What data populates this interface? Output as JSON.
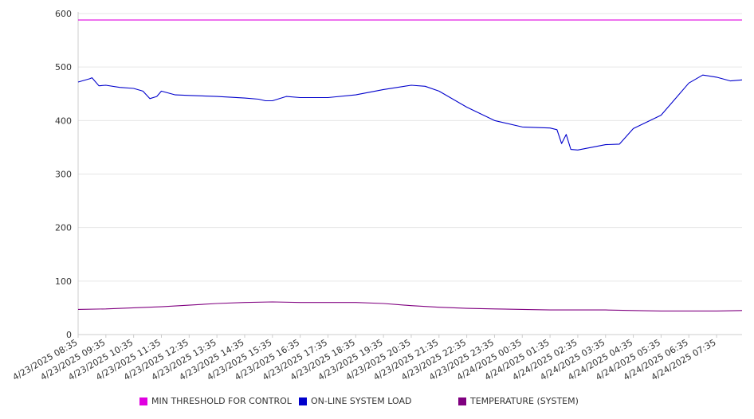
{
  "chart_data": {
    "type": "line",
    "y_ticks": [
      "0",
      "100",
      "200",
      "300",
      "400",
      "500",
      "600"
    ],
    "ylim": [
      0,
      600
    ],
    "x_tick_labels": [
      "4/23/2025 08:35",
      "4/23/2025 09:35",
      "4/23/2025 10:35",
      "4/23/2025 11:35",
      "4/23/2025 12:35",
      "4/23/2025 13:35",
      "4/23/2025 14:35",
      "4/23/2025 15:35",
      "4/23/2025 16:35",
      "4/23/2025 17:35",
      "4/23/2025 18:35",
      "4/23/2025 19:35",
      "4/23/2025 20:35",
      "4/23/2025 21:35",
      "4/23/2025 22:35",
      "4/23/2025 23:35",
      "4/24/2025 00:35",
      "4/24/2025 01:35",
      "4/24/2025 02:35",
      "4/24/2025 03:35",
      "4/24/2025 04:35",
      "4/24/2025 05:35",
      "4/24/2025 06:35",
      "4/24/2025 07:35"
    ],
    "x_end": "4/24/2025 08:30",
    "grid": true,
    "legend_position": "bottom",
    "series": [
      {
        "name": "MIN THRESHOLD FOR CONTROL",
        "color": "#e000e0",
        "x": [
          "4/23/2025 08:35",
          "4/24/2025 08:30"
        ],
        "values": [
          588,
          588
        ]
      },
      {
        "name": "ON-LINE SYSTEM LOAD",
        "color": "#0000cc",
        "x": [
          "4/23/2025 08:35",
          "4/23/2025 09:00",
          "4/23/2025 09:05",
          "4/23/2025 09:20",
          "4/23/2025 09:35",
          "4/23/2025 10:05",
          "4/23/2025 10:35",
          "4/23/2025 10:55",
          "4/23/2025 11:10",
          "4/23/2025 11:25",
          "4/23/2025 11:35",
          "4/23/2025 12:05",
          "4/23/2025 12:35",
          "4/23/2025 13:35",
          "4/23/2025 14:35",
          "4/23/2025 15:05",
          "4/23/2025 15:20",
          "4/23/2025 15:35",
          "4/23/2025 16:05",
          "4/23/2025 16:35",
          "4/23/2025 17:35",
          "4/23/2025 18:35",
          "4/23/2025 19:35",
          "4/23/2025 20:35",
          "4/23/2025 21:05",
          "4/23/2025 21:35",
          "4/23/2025 22:35",
          "4/23/2025 23:35",
          "4/24/2025 00:35",
          "4/24/2025 01:35",
          "4/24/2025 01:50",
          "4/24/2025 02:00",
          "4/24/2025 02:10",
          "4/24/2025 02:20",
          "4/24/2025 02:35",
          "4/24/2025 03:35",
          "4/24/2025 04:05",
          "4/24/2025 04:35",
          "4/24/2025 05:35",
          "4/24/2025 06:05",
          "4/24/2025 06:35",
          "4/24/2025 07:05",
          "4/24/2025 07:35",
          "4/24/2025 08:05",
          "4/24/2025 08:30"
        ],
        "values": [
          472,
          478,
          480,
          465,
          466,
          462,
          460,
          455,
          441,
          445,
          455,
          448,
          447,
          445,
          442,
          440,
          437,
          437,
          445,
          443,
          443,
          448,
          458,
          466,
          464,
          455,
          425,
          400,
          388,
          386,
          383,
          357,
          374,
          346,
          345,
          355,
          356,
          385,
          410,
          440,
          470,
          485,
          481,
          474,
          476
        ]
      },
      {
        "name": "TEMPERATURE (SYSTEM)",
        "color": "#800080",
        "x": [
          "4/23/2025 08:35",
          "4/23/2025 09:35",
          "4/23/2025 10:35",
          "4/23/2025 11:35",
          "4/23/2025 12:35",
          "4/23/2025 13:35",
          "4/23/2025 14:35",
          "4/23/2025 15:35",
          "4/23/2025 16:35",
          "4/23/2025 17:35",
          "4/23/2025 18:35",
          "4/23/2025 19:35",
          "4/23/2025 20:35",
          "4/23/2025 21:35",
          "4/23/2025 22:35",
          "4/23/2025 23:35",
          "4/24/2025 00:35",
          "4/24/2025 01:35",
          "4/24/2025 02:35",
          "4/24/2025 03:35",
          "4/24/2025 04:35",
          "4/24/2025 05:35",
          "4/24/2025 06:35",
          "4/24/2025 07:35",
          "4/24/2025 08:30"
        ],
        "values": [
          47,
          48,
          50,
          52,
          55,
          58,
          60,
          61,
          60,
          60,
          60,
          58,
          54,
          51,
          49,
          48,
          47,
          46,
          46,
          46,
          45,
          44,
          44,
          44,
          45
        ]
      }
    ]
  }
}
